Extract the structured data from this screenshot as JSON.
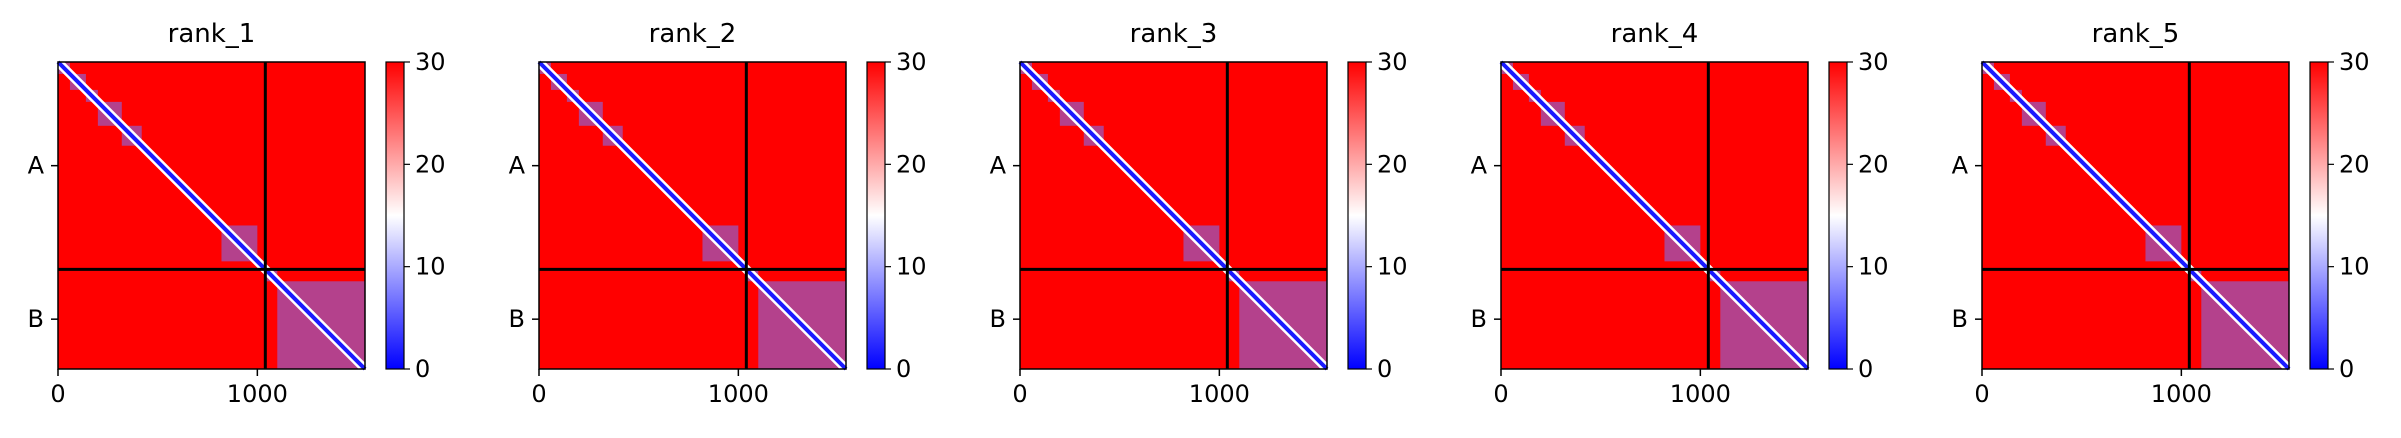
{
  "chart_data": {
    "type": "heatmap",
    "colormap": {
      "low": "#0000ff",
      "mid": "#ffffff",
      "high": "#ff0000"
    },
    "colorbar": {
      "vmin": 0,
      "vmax": 30,
      "ticks": [
        "0",
        "10",
        "20",
        "30"
      ]
    },
    "x_ticks": [
      "0",
      "1000"
    ],
    "x_tick_values": [
      0,
      1000
    ],
    "x_range": [
      0,
      1540
    ],
    "chains": [
      {
        "label": "A",
        "start": 0,
        "end": 1040
      },
      {
        "label": "B",
        "start": 1040,
        "end": 1540
      }
    ],
    "chain_boundary": 1040,
    "domain_blocks": [
      {
        "chain": "A",
        "start": 0,
        "end": 60
      },
      {
        "chain": "A",
        "start": 60,
        "end": 140
      },
      {
        "chain": "A",
        "start": 140,
        "end": 200
      },
      {
        "chain": "A",
        "start": 200,
        "end": 320
      },
      {
        "chain": "A",
        "start": 320,
        "end": 420
      },
      {
        "chain": "A",
        "start": 820,
        "end": 1000
      },
      {
        "chain": "B",
        "start": 1040,
        "end": 1100
      },
      {
        "chain": "B",
        "start": 1100,
        "end": 1540
      }
    ],
    "panels": [
      {
        "title": "rank_1"
      },
      {
        "title": "rank_2"
      },
      {
        "title": "rank_3"
      },
      {
        "title": "rank_4"
      },
      {
        "title": "rank_5"
      }
    ]
  }
}
